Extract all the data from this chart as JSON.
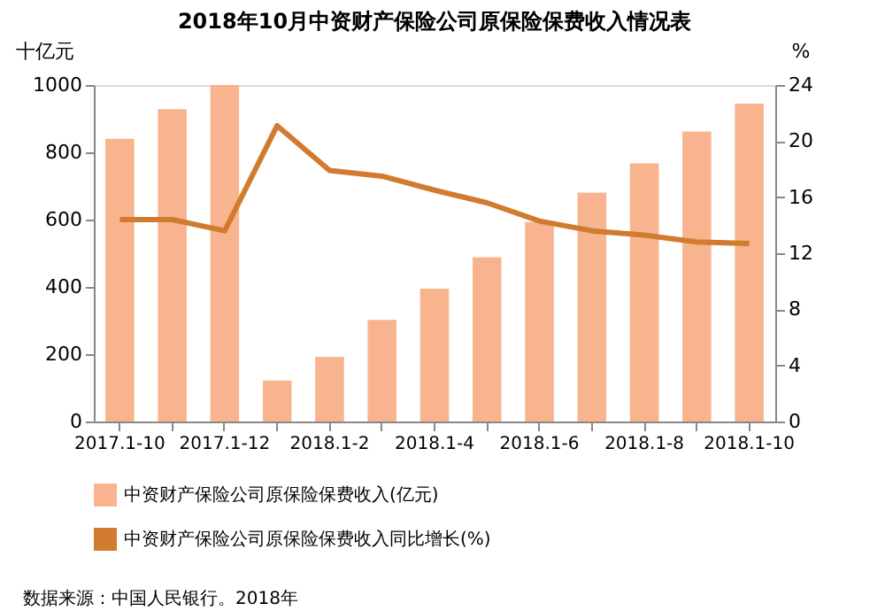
{
  "chart_data": {
    "type": "bar",
    "title": "2018年10月中资财产保险公司原保险保费收入情况表",
    "ylabel": "十亿元",
    "y2label": "%",
    "categories": [
      "2017.1-10",
      null,
      "2017.1-12",
      null,
      "2018.1-2",
      null,
      "2018.1-4",
      null,
      "2018.1-6",
      null,
      "2018.1-8",
      null,
      "2018.1-10"
    ],
    "series": [
      {
        "name": "中资财产保险公司原保险保费收入(亿元)",
        "color": "#f7b48f",
        "values": [
          840,
          928,
          1000,
          122,
          192,
          302,
          395,
          488,
          593,
          680,
          767,
          862,
          945
        ]
      },
      {
        "name": "中资财产保险公司原保险保费收入同比增长(%)",
        "type": "line",
        "axis": "y2",
        "color": "#d07b2e",
        "values": [
          14.4,
          14.4,
          13.6,
          21.1,
          17.9,
          17.5,
          16.5,
          15.6,
          14.3,
          13.6,
          13.3,
          12.8,
          12.7
        ]
      }
    ],
    "ylim": [
      0,
      1000
    ],
    "yticks": [
      0,
      200,
      400,
      600,
      800,
      1000
    ],
    "y2lim": [
      0,
      24
    ],
    "y2ticks": [
      0,
      4,
      8,
      12,
      16,
      20,
      24
    ],
    "grid": false,
    "legend": "bottom",
    "marker": "none",
    "line_style": "solid",
    "annotations": [
      "数据来源：中国人民银行。2018年"
    ]
  }
}
